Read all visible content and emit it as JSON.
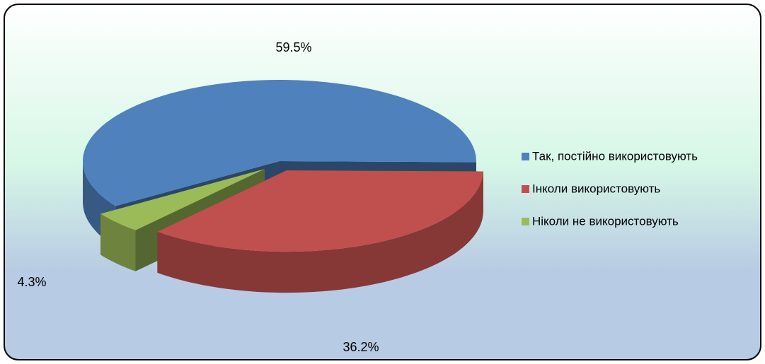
{
  "chart_data": {
    "type": "pie",
    "categories": [
      "Так, постійно використовують",
      "Інколи використовують",
      "Ніколи не використовують"
    ],
    "values": [
      59.5,
      36.2,
      4.3
    ],
    "value_labels": [
      "59.5%",
      "36.2%",
      "4.3%"
    ],
    "colors": [
      "#4f81bd",
      "#c0504d",
      "#9bbb59"
    ],
    "legend": "right"
  }
}
